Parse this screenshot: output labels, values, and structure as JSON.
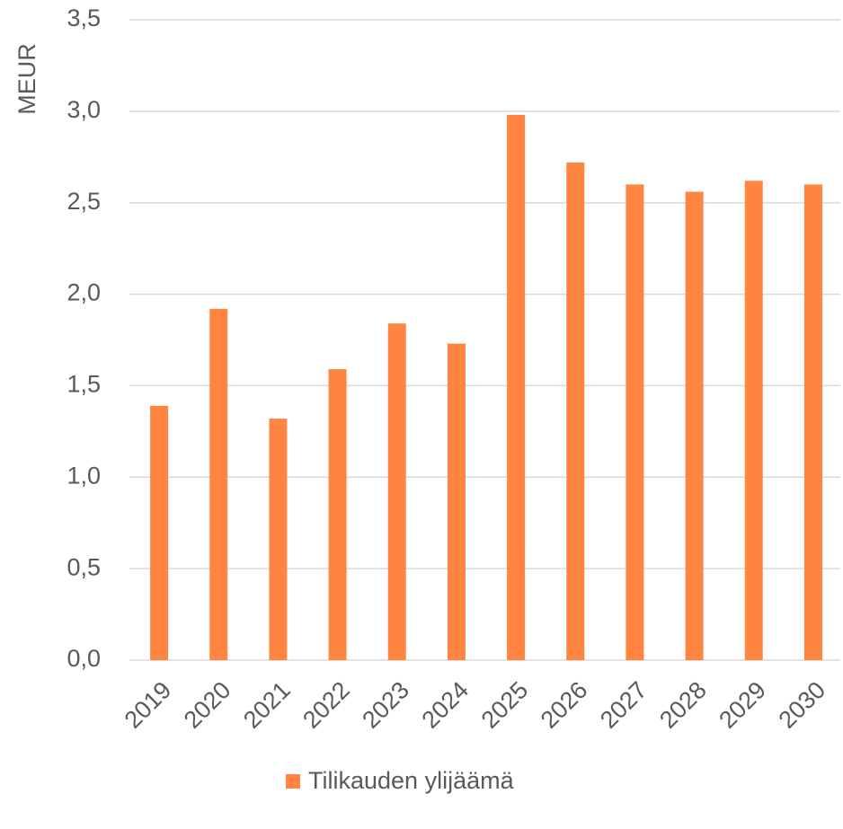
{
  "chart_data": {
    "type": "bar",
    "y_label": "MEUR",
    "categories": [
      "2019",
      "2020",
      "2021",
      "2022",
      "2023",
      "2024",
      "2025",
      "2026",
      "2027",
      "2028",
      "2029",
      "2030"
    ],
    "series": [
      {
        "name": "Tilikauden ylijäämä",
        "color": "#ff8540",
        "values": [
          1.39,
          1.92,
          1.32,
          1.59,
          1.84,
          1.73,
          2.98,
          2.72,
          2.6,
          2.56,
          2.62,
          2.6
        ]
      }
    ],
    "ylim": [
      0,
      3.5
    ],
    "yticks": [
      {
        "value": 0,
        "label": "0,0"
      },
      {
        "value": 0.5,
        "label": "0,5"
      },
      {
        "value": 1,
        "label": "1,0"
      },
      {
        "value": 1.5,
        "label": "1,5"
      },
      {
        "value": 2,
        "label": "2,0"
      },
      {
        "value": 2.5,
        "label": "2,5"
      },
      {
        "value": 3,
        "label": "3,0"
      },
      {
        "value": 3.5,
        "label": "3,5"
      }
    ],
    "grid": true,
    "legend": "bottom"
  }
}
